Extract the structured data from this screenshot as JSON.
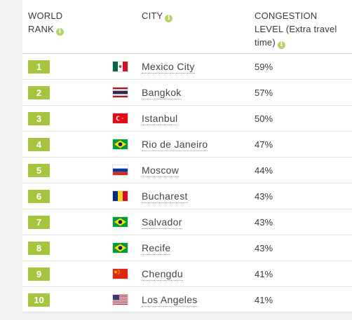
{
  "header": {
    "rank_label_line1": "WORLD",
    "rank_label_line2": "RANK",
    "city_label": "CITY",
    "congestion_line1": "CONGESTION",
    "congestion_line2": "LEVEL (Extra travel",
    "congestion_line3": "time)",
    "info_glyph": "i"
  },
  "rows": [
    {
      "rank": "1",
      "city": "Mexico City",
      "congestion": "59%",
      "flag": "mexico-flag"
    },
    {
      "rank": "2",
      "city": "Bangkok",
      "congestion": "57%",
      "flag": "thailand-flag"
    },
    {
      "rank": "3",
      "city": "Istanbul",
      "congestion": "50%",
      "flag": "turkey-flag"
    },
    {
      "rank": "4",
      "city": "Rio de Janeiro",
      "congestion": "47%",
      "flag": "brazil-flag"
    },
    {
      "rank": "5",
      "city": "Moscow",
      "congestion": "44%",
      "flag": "russia-flag"
    },
    {
      "rank": "6",
      "city": "Bucharest",
      "congestion": "43%",
      "flag": "romania-flag"
    },
    {
      "rank": "7",
      "city": "Salvador",
      "congestion": "43%",
      "flag": "brazil-flag"
    },
    {
      "rank": "8",
      "city": "Recife",
      "congestion": "43%",
      "flag": "brazil-flag"
    },
    {
      "rank": "9",
      "city": "Chengdu",
      "congestion": "41%",
      "flag": "china-flag"
    },
    {
      "rank": "10",
      "city": "Los Angeles",
      "congestion": "41%",
      "flag": "usa-flag"
    }
  ],
  "colors": {
    "badge": "#a6c43d",
    "info_icon": "#b5d36b"
  }
}
